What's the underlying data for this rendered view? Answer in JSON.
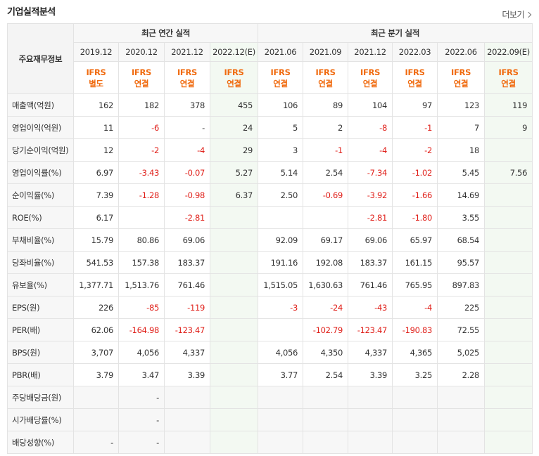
{
  "header": {
    "title": "기업실적분석",
    "more": "더보기"
  },
  "table": {
    "corner": "주요재무정보",
    "groups": [
      {
        "label": "최근 연간 실적",
        "span": 4
      },
      {
        "label": "최근 분기 실적",
        "span": 6
      }
    ],
    "columns": [
      {
        "period": "2019.12",
        "standard": "IFRS",
        "basis": "별도",
        "estimate": false
      },
      {
        "period": "2020.12",
        "standard": "IFRS",
        "basis": "연결",
        "estimate": false
      },
      {
        "period": "2021.12",
        "standard": "IFRS",
        "basis": "연결",
        "estimate": false
      },
      {
        "period": "2022.12(E)",
        "standard": "IFRS",
        "basis": "연결",
        "estimate": true
      },
      {
        "period": "2021.06",
        "standard": "IFRS",
        "basis": "연결",
        "estimate": false
      },
      {
        "period": "2021.09",
        "standard": "IFRS",
        "basis": "연결",
        "estimate": false
      },
      {
        "period": "2021.12",
        "standard": "IFRS",
        "basis": "연결",
        "estimate": false
      },
      {
        "period": "2022.03",
        "standard": "IFRS",
        "basis": "연결",
        "estimate": false
      },
      {
        "period": "2022.06",
        "standard": "IFRS",
        "basis": "연결",
        "estimate": false
      },
      {
        "period": "2022.09(E)",
        "standard": "IFRS",
        "basis": "연결",
        "estimate": true
      }
    ],
    "rows": [
      {
        "label": "매출액(억원)",
        "cells": [
          "162",
          "182",
          "378",
          "455",
          "106",
          "89",
          "104",
          "97",
          "123",
          "119"
        ]
      },
      {
        "label": "영업이익(억원)",
        "cells": [
          "11",
          "-6",
          "-",
          "24",
          "5",
          "2",
          "-8",
          "-1",
          "7",
          "9"
        ]
      },
      {
        "label": "당기순이익(억원)",
        "cells": [
          "12",
          "-2",
          "-4",
          "29",
          "3",
          "-1",
          "-4",
          "-2",
          "18",
          null
        ]
      },
      {
        "label": "영업이익률(%)",
        "cells": [
          "6.97",
          "-3.43",
          "-0.07",
          "5.27",
          "5.14",
          "2.54",
          "-7.34",
          "-1.02",
          "5.45",
          "7.56"
        ]
      },
      {
        "label": "순이익률(%)",
        "cells": [
          "7.39",
          "-1.28",
          "-0.98",
          "6.37",
          "2.50",
          "-0.69",
          "-3.92",
          "-1.66",
          "14.69",
          null
        ]
      },
      {
        "label": "ROE(%)",
        "cells": [
          "6.17",
          null,
          "-2.81",
          null,
          null,
          null,
          "-2.81",
          "-1.80",
          "3.55",
          null
        ]
      },
      {
        "label": "부채비율(%)",
        "cells": [
          "15.79",
          "80.86",
          "69.06",
          null,
          "92.09",
          "69.17",
          "69.06",
          "65.97",
          "68.54",
          null
        ]
      },
      {
        "label": "당좌비율(%)",
        "cells": [
          "541.53",
          "157.38",
          "183.37",
          null,
          "191.16",
          "192.08",
          "183.37",
          "161.15",
          "95.57",
          null
        ]
      },
      {
        "label": "유보율(%)",
        "cells": [
          "1,377.71",
          "1,513.76",
          "761.46",
          null,
          "1,515.05",
          "1,630.63",
          "761.46",
          "765.95",
          "897.83",
          null
        ]
      },
      {
        "label": "EPS(원)",
        "cells": [
          "226",
          "-85",
          "-119",
          null,
          "-3",
          "-24",
          "-43",
          "-4",
          "225",
          null
        ]
      },
      {
        "label": "PER(배)",
        "cells": [
          "62.06",
          "-164.98",
          "-123.47",
          null,
          null,
          "-102.79",
          "-123.47",
          "-190.83",
          "72.55",
          null
        ]
      },
      {
        "label": "BPS(원)",
        "cells": [
          "3,707",
          "4,056",
          "4,337",
          null,
          "4,056",
          "4,350",
          "4,337",
          "4,365",
          "5,025",
          null
        ]
      },
      {
        "label": "PBR(배)",
        "cells": [
          "3.79",
          "3.47",
          "3.39",
          null,
          "3.77",
          "2.54",
          "3.39",
          "3.25",
          "2.28",
          null
        ]
      },
      {
        "label": "주당배당금(원)",
        "cells": [
          null,
          "-",
          null,
          null,
          null,
          null,
          null,
          null,
          null,
          null
        ]
      },
      {
        "label": "시가배당률(%)",
        "cells": [
          null,
          "-",
          null,
          null,
          null,
          null,
          null,
          null,
          null,
          null
        ]
      },
      {
        "label": "배당성향(%)",
        "cells": [
          "-",
          "-",
          null,
          null,
          null,
          null,
          null,
          null,
          null,
          null
        ]
      }
    ]
  }
}
